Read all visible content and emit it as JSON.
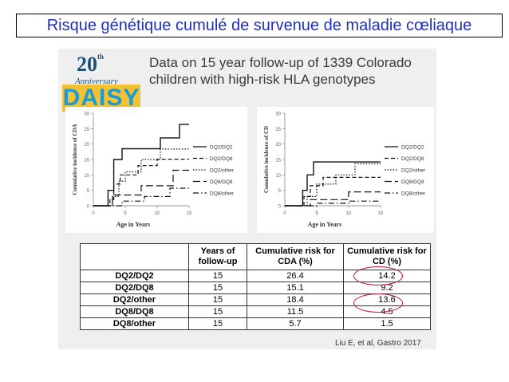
{
  "slide_title": "Risque génétique cumulé de survenue de maladie cœliaque",
  "logo": {
    "number": "20",
    "sup": "th",
    "anniversary": "Anniversary",
    "name": "DAISY"
  },
  "subtitle_line1": "Data on 15 year follow-up of 1339 Colorado",
  "subtitle_line2": "children with high-risk HLA genotypes",
  "citation": "Liu E, et al, Gastro 2017",
  "table": {
    "headers": [
      "",
      "Years of follow-up",
      "Cumulative risk for CDA (%)",
      "Cumulative risk for CD (%)"
    ],
    "rows": [
      [
        "DQ2/DQ2",
        "15",
        "26.4",
        "14.2"
      ],
      [
        "DQ2/DQ8",
        "15",
        "15.1",
        "9.2"
      ],
      [
        "DQ2/other",
        "15",
        "18.4",
        "13.6"
      ],
      [
        "DQ8/DQ8",
        "15",
        "11.5",
        "4.5"
      ],
      [
        "DQ8/other",
        "15",
        "5.7",
        "1.5"
      ]
    ],
    "highlight_color": "#c8102e"
  },
  "chart_data": [
    {
      "type": "line",
      "ylabel": "Cumulative incidence of CDA",
      "xlabel": "Age in Years",
      "xlim": [
        0,
        15
      ],
      "ylim": [
        0,
        30
      ],
      "xticks": [
        "0",
        "5",
        "10",
        "15"
      ],
      "yticks": [
        "0",
        "5",
        "10",
        "15",
        "20",
        "25",
        "30"
      ],
      "legend_position": "right",
      "series": [
        {
          "name": "DQ2/DQ2",
          "style": "solid",
          "x": [
            0,
            2.3,
            2.3,
            3.2,
            3.2,
            4.5,
            4.5,
            10.5,
            10.5,
            13.5,
            13.5,
            15
          ],
          "y": [
            0,
            0,
            5,
            5,
            15,
            15,
            18.5,
            18.5,
            22,
            22,
            26.4,
            26.4
          ]
        },
        {
          "name": "DQ2/DQ8",
          "style": "dashed",
          "x": [
            0,
            2.6,
            2.6,
            3.2,
            3.2,
            4.2,
            4.2,
            7.0,
            7.0,
            10.0,
            10.0,
            15
          ],
          "y": [
            0,
            0,
            2,
            2,
            7,
            7,
            10,
            10,
            13,
            13,
            15.1,
            15.1
          ]
        },
        {
          "name": "DQ2/other",
          "style": "dotted",
          "x": [
            0,
            3.0,
            3.0,
            4.0,
            4.0,
            5.0,
            5.0,
            7.5,
            7.5,
            10.5,
            10.5,
            15
          ],
          "y": [
            0,
            0,
            3,
            3,
            8,
            8,
            11,
            11,
            15,
            15,
            18.4,
            18.4
          ]
        },
        {
          "name": "DQ8/DQ8",
          "style": "longdash",
          "x": [
            0,
            3.0,
            3.0,
            7.5,
            7.5,
            12.5,
            12.5,
            15
          ],
          "y": [
            0,
            0,
            3.5,
            3.5,
            6.5,
            6.5,
            11.5,
            11.5
          ]
        },
        {
          "name": "DQ8/other",
          "style": "dashdot",
          "x": [
            0,
            4.5,
            4.5,
            8.0,
            8.0,
            12.0,
            12.0,
            15
          ],
          "y": [
            0,
            0,
            1.5,
            1.5,
            3.0,
            3.0,
            5.7,
            5.7
          ]
        }
      ]
    },
    {
      "type": "line",
      "ylabel": "Cumulative incidence of CD",
      "xlabel": "Age in Years",
      "xlim": [
        0,
        15
      ],
      "ylim": [
        0,
        30
      ],
      "xticks": [
        "0",
        "5",
        "10",
        "15"
      ],
      "yticks": [
        "0",
        "5",
        "10",
        "15",
        "20",
        "25",
        "30"
      ],
      "legend_position": "right",
      "series": [
        {
          "name": "DQ2/DQ2",
          "style": "solid",
          "x": [
            0,
            2.8,
            2.8,
            3.5,
            3.5,
            4.5,
            4.5,
            15
          ],
          "y": [
            0,
            0,
            5,
            5,
            10,
            10,
            14.2,
            14.2
          ]
        },
        {
          "name": "DQ2/DQ8",
          "style": "dashed",
          "x": [
            0,
            3.0,
            3.0,
            4.0,
            4.0,
            6.0,
            6.0,
            15
          ],
          "y": [
            0,
            0,
            3,
            3,
            6.5,
            6.5,
            9.2,
            9.2
          ]
        },
        {
          "name": "DQ2/other",
          "style": "dotted",
          "x": [
            0,
            3.5,
            3.5,
            5.0,
            5.0,
            8.0,
            8.0,
            11.0,
            11.0,
            15
          ],
          "y": [
            0,
            0,
            3,
            3,
            7,
            7,
            10,
            10,
            13.6,
            13.6
          ]
        },
        {
          "name": "DQ8/DQ8",
          "style": "longdash",
          "x": [
            0,
            4.0,
            4.0,
            10.0,
            10.0,
            15
          ],
          "y": [
            0,
            0,
            2,
            2,
            4.5,
            4.5
          ]
        },
        {
          "name": "DQ8/other",
          "style": "dashdot",
          "x": [
            0,
            5.0,
            5.0,
            10.0,
            10.0,
            15
          ],
          "y": [
            0,
            0,
            0.8,
            0.8,
            1.5,
            1.5
          ]
        }
      ]
    }
  ]
}
